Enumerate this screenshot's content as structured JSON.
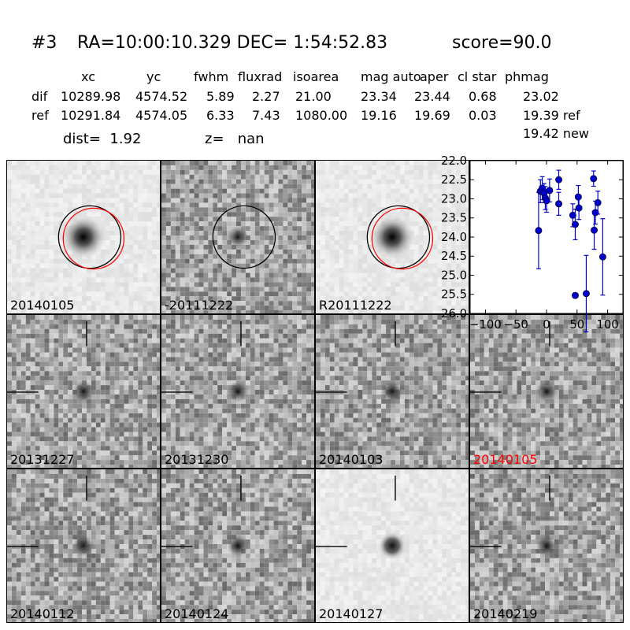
{
  "header": {
    "title_id": "#3",
    "title_radec": "RA=10:00:10.329 DEC= 1:54:52.83",
    "title_score": "score=90.0",
    "columns": [
      "xc",
      "yc",
      "fwhm",
      "fluxrad",
      "isoarea",
      "mag auto",
      "aper",
      "cl star",
      "phmag"
    ],
    "rows": [
      {
        "label": "dif",
        "values": [
          "10289.98",
          "4574.52",
          "5.89",
          "2.27",
          "21.00",
          "23.34",
          "23.44",
          "0.68",
          "23.02"
        ]
      },
      {
        "label": "ref",
        "values": [
          "10291.84",
          "4574.05",
          "6.33",
          "7.43",
          "1080.00",
          "19.16",
          "19.69",
          "0.03",
          "19.39 ref"
        ]
      }
    ],
    "phmag_new": "19.42 new",
    "dist": "dist=  1.92",
    "z": "z=   nan"
  },
  "panels": [
    {
      "label": "20140105",
      "style": "light",
      "source": "sharp",
      "circles": [
        "black",
        "red"
      ],
      "red_label": false,
      "crosshair": false
    },
    {
      "label": "-20111222",
      "style": "noise",
      "source": "faint",
      "circles": [
        "black"
      ],
      "red_label": false,
      "crosshair": false
    },
    {
      "label": "R20111222",
      "style": "light",
      "source": "sharp",
      "circles": [
        "black",
        "red"
      ],
      "red_label": false,
      "crosshair": false
    },
    {
      "label": "20131227",
      "style": "noise",
      "source": "faint",
      "circles": [],
      "red_label": false,
      "crosshair": true
    },
    {
      "label": "20131230",
      "style": "noise",
      "source": "faint",
      "circles": [],
      "red_label": false,
      "crosshair": true
    },
    {
      "label": "20140103",
      "style": "noise",
      "source": "faint",
      "circles": [],
      "red_label": false,
      "crosshair": true
    },
    {
      "label": "20140105",
      "style": "noise",
      "source": "faint",
      "circles": [],
      "red_label": true,
      "crosshair": true
    },
    {
      "label": "20140112",
      "style": "noise",
      "source": "faint",
      "circles": [],
      "red_label": false,
      "crosshair": true
    },
    {
      "label": "20140124",
      "style": "noise",
      "source": "faint",
      "circles": [],
      "red_label": false,
      "crosshair": true
    },
    {
      "label": "20140127",
      "style": "light",
      "source": "medium",
      "circles": [],
      "red_label": false,
      "crosshair": true
    },
    {
      "label": "20140219",
      "style": "noise",
      "source": "faint",
      "circles": [],
      "red_label": false,
      "crosshair": true
    }
  ],
  "colors": {
    "point": "#0000cc",
    "circle_ref": "#000000",
    "circle_new": "#ff0000",
    "label_highlight": "#ff0000"
  },
  "chart_data": {
    "type": "scatter",
    "xlim": [
      -125,
      125
    ],
    "ylim": [
      26.0,
      22.0
    ],
    "y_inverted": true,
    "x_ticks": [
      "−100",
      "−50",
      "0",
      "50",
      "100"
    ],
    "x_tick_values": [
      -100,
      -50,
      0,
      50,
      100
    ],
    "y_ticks": [
      "22.0",
      "22.5",
      "23.0",
      "23.5",
      "24.0",
      "24.5",
      "25.0",
      "25.5",
      "26.0"
    ],
    "y_tick_values": [
      22.0,
      22.5,
      23.0,
      23.5,
      24.0,
      24.5,
      25.0,
      25.5,
      26.0
    ],
    "points": [
      {
        "x": -13,
        "y": 23.83,
        "err": 1.0
      },
      {
        "x": -10,
        "y": 22.8,
        "err": 0.3
      },
      {
        "x": -7,
        "y": 22.72,
        "err": 0.3
      },
      {
        "x": -4,
        "y": 22.85,
        "err": 0.25
      },
      {
        "x": -2,
        "y": 22.98,
        "err": 0.3
      },
      {
        "x": 0,
        "y": 23.05,
        "err": 0.3
      },
      {
        "x": 5,
        "y": 22.78,
        "err": 0.3
      },
      {
        "x": 20,
        "y": 22.5,
        "err": 0.25
      },
      {
        "x": 20,
        "y": 23.13,
        "err": 0.3
      },
      {
        "x": 43,
        "y": 23.43,
        "err": 0.3
      },
      {
        "x": 47,
        "y": 23.67,
        "err": 0.4
      },
      {
        "x": 47,
        "y": 25.53,
        "err": 0.05
      },
      {
        "x": 52,
        "y": 22.95,
        "err": 0.3
      },
      {
        "x": 53,
        "y": 23.24,
        "err": 0.3
      },
      {
        "x": 65,
        "y": 25.48,
        "err": 1.0
      },
      {
        "x": 77,
        "y": 22.47,
        "err": 0.2
      },
      {
        "x": 78,
        "y": 23.82,
        "err": 0.5
      },
      {
        "x": 80,
        "y": 23.36,
        "err": 0.3
      },
      {
        "x": 84,
        "y": 23.1,
        "err": 0.3
      },
      {
        "x": 92,
        "y": 24.52,
        "err": 1.0
      }
    ]
  }
}
